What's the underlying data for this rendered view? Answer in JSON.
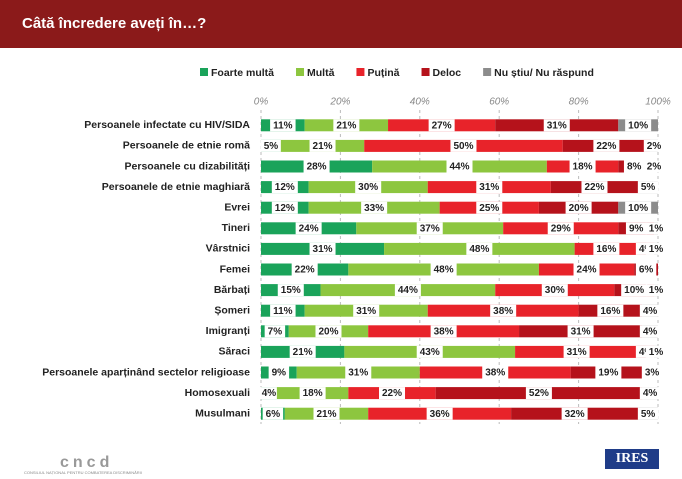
{
  "chart_data": {
    "type": "stacked_barh",
    "title": "Câtă încredere aveți în…?",
    "categories": [
      "Persoanele infectate cu HIV/SIDA",
      "Persoanele de etnie romă",
      "Persoanele cu dizabilități",
      "Persoanele de etnie maghiară",
      "Evrei",
      "Tineri",
      "Vârstnici",
      "Femei",
      "Bărbați",
      "Șomeri",
      "Imigranți",
      "Săraci",
      "Persoanele aparținând sectelor religioase",
      "Homosexuali",
      "Musulmani"
    ],
    "series": [
      {
        "name": "Foarte multă",
        "color": "#1aa35a",
        "values": [
          11,
          5,
          28,
          12,
          12,
          24,
          31,
          22,
          15,
          11,
          7,
          21,
          9,
          4,
          6
        ],
        "value_labels": [
          "11%",
          "5%",
          "28%",
          "12%",
          "12%",
          "24%",
          "31%",
          "22%",
          "15%",
          "11%",
          "7%",
          "21%",
          "9%",
          "4%",
          "6%"
        ]
      },
      {
        "name": "Multă",
        "color": "#8dc63f",
        "values": [
          21,
          21,
          44,
          30,
          33,
          37,
          48,
          48,
          44,
          31,
          20,
          43,
          31,
          18,
          21
        ],
        "value_labels": [
          "21%",
          "21%",
          "44%",
          "30%",
          "33%",
          "37%",
          "48%",
          "48%",
          "44%",
          "31%",
          "20%",
          "43%",
          "31%",
          "18%",
          "21%"
        ]
      },
      {
        "name": "Puțină",
        "color": "#e8232a",
        "values": [
          27,
          50,
          18,
          31,
          25,
          29,
          16,
          24,
          30,
          38,
          38,
          31,
          38,
          22,
          36
        ],
        "value_labels": [
          "27%",
          "50%",
          "18%",
          "31%",
          "25%",
          "29%",
          "16%",
          "24%",
          "30%",
          "38%",
          "38%",
          "31%",
          "38%",
          "22%",
          "36%"
        ]
      },
      {
        "name": "Deloc",
        "color": "#b5121b",
        "values": [
          31,
          22,
          8,
          22,
          20,
          9,
          4,
          6,
          10,
          16,
          31,
          4,
          19,
          52,
          32
        ],
        "value_labels": [
          "31%",
          "22%",
          "8%",
          "22%",
          "20%",
          "9%",
          "4%",
          "6%",
          "10%",
          "16%",
          "31%",
          "4%",
          "19%",
          "52%",
          "32%"
        ]
      },
      {
        "name": "Nu știu/ Nu răspund",
        "color": "#8c8c8c",
        "values": [
          10,
          2,
          2,
          5,
          10,
          1,
          1,
          null,
          1,
          4,
          4,
          1,
          3,
          4,
          5
        ],
        "value_labels": [
          "10%",
          "2%",
          "2%",
          "5%",
          "10%",
          "1%",
          "1%",
          null,
          "1%",
          "4%",
          "4%",
          "1%",
          "3%",
          "4%",
          "5%"
        ]
      }
    ],
    "xlim": [
      0,
      100
    ],
    "xticks": [
      {
        "value": 0,
        "label": "0%"
      },
      {
        "value": 20,
        "label": "20%"
      },
      {
        "value": 40,
        "label": "40%"
      },
      {
        "value": 60,
        "label": "60%"
      },
      {
        "value": 80,
        "label": "80%"
      },
      {
        "value": 100,
        "label": "100%"
      }
    ],
    "grid": true,
    "legend": "top"
  },
  "footer": {
    "left_logo": "cncd",
    "left_caption": "CONSILIUL NAȚIONAL PENTRU COMBATEREA DISCRIMINĂRII",
    "right_logo": "IRES"
  }
}
